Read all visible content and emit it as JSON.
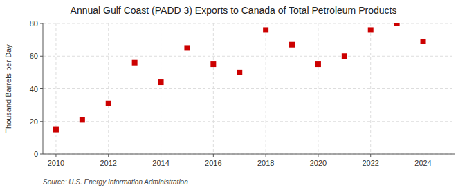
{
  "chart_data": {
    "type": "scatter",
    "title": "Annual Gulf Coast (PADD 3) Exports to Canada of Total Petroleum Products",
    "ylabel": "Thousand Barrels per Day",
    "source": "Source: U.S. Energy Information Administration",
    "x": [
      2010,
      2011,
      2012,
      2013,
      2014,
      2015,
      2016,
      2017,
      2018,
      2019,
      2020,
      2021,
      2022,
      2023,
      2024
    ],
    "values": [
      15,
      21,
      31,
      56,
      44,
      65,
      55,
      50,
      76,
      67,
      55,
      60,
      76,
      80,
      69
    ],
    "color": "#cc0000",
    "marker": "square",
    "xlim": [
      2009.5,
      2025.2
    ],
    "xticks": [
      2010,
      2012,
      2014,
      2016,
      2018,
      2020,
      2022,
      2024
    ],
    "ylim": [
      0,
      80
    ],
    "yticks": [
      0,
      20,
      40,
      60,
      80
    ],
    "grid": true
  }
}
